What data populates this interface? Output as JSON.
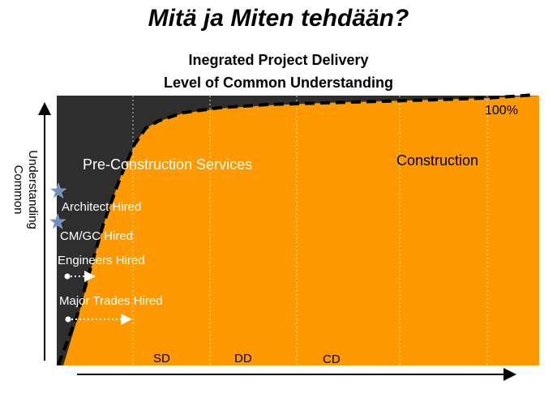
{
  "slide_title": "Mitä ja Miten tehdään?",
  "chart": {
    "title_line1": "Inegrated Project Delivery",
    "title_line2": "Level of Common Understanding",
    "ylabel_line1": "Common",
    "ylabel_line2": "Understanding",
    "top_label": "100%",
    "phase_labels": {
      "preconstruction": "Pre-Construction Services",
      "construction": "Construction"
    },
    "milestones": {
      "architect": "Architect Hired",
      "cmgc": "CM/GC Hired",
      "engineers": "Engineers Hired",
      "trades": "Major Trades Hired"
    },
    "stage_labels": [
      "SD",
      "DD",
      "CD"
    ]
  },
  "colors": {
    "fill": "#FF9900",
    "background": "#2E2E2E",
    "curve": "#000000",
    "star": "#6F8FBE",
    "text_light": "#FFFFFF"
  },
  "icons": [
    "star-icon",
    "arrow-icon"
  ]
}
